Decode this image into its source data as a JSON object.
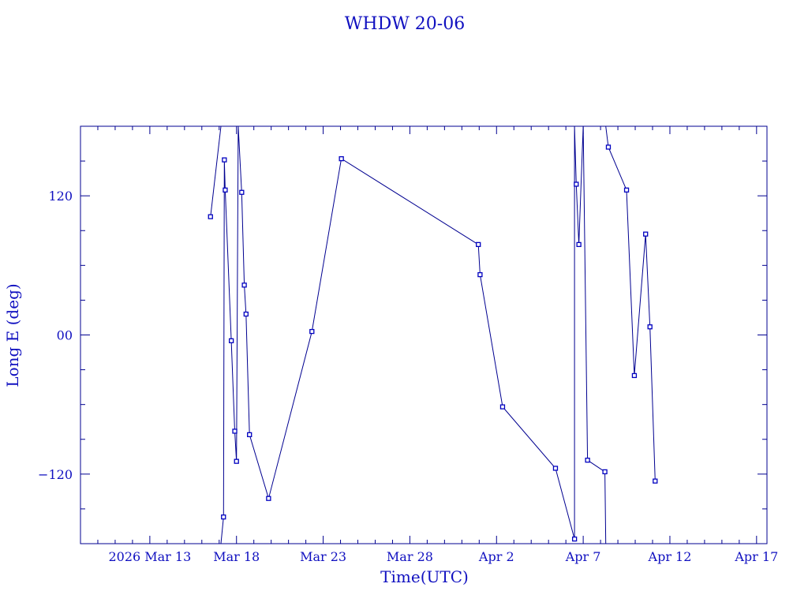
{
  "chart_data": {
    "type": "line",
    "title": "WHDW 20-06",
    "xlabel": "Time(UTC)",
    "ylabel": "Long E (deg)",
    "x_start_date": "2026-03-09",
    "xlim_days": [
      0,
      39.6
    ],
    "ylim": [
      -180,
      180
    ],
    "x_ticks": [
      {
        "day": 4,
        "label": "2026 Mar 13"
      },
      {
        "day": 9,
        "label": "Mar 18"
      },
      {
        "day": 14,
        "label": "Mar 23"
      },
      {
        "day": 19,
        "label": "Mar 28"
      },
      {
        "day": 24,
        "label": "Apr  2"
      },
      {
        "day": 29,
        "label": "Apr  7"
      },
      {
        "day": 34,
        "label": "Apr 12"
      },
      {
        "day": 39,
        "label": "Apr 17"
      }
    ],
    "y_ticks": [
      {
        "value": -120,
        "label": "−120"
      },
      {
        "value": 0,
        "label": "00"
      },
      {
        "value": 120,
        "label": "120"
      }
    ],
    "x_minor_step_days": 1,
    "y_minor_step": 30,
    "wrap_longitude": true,
    "series": [
      {
        "color": "#000090",
        "marker": "square",
        "points": [
          {
            "x": 7.5,
            "y": 102
          },
          {
            "x": 8.1,
            "y": 180
          },
          {
            "x": 8.1,
            "y": -180
          },
          {
            "x": 8.25,
            "y": -157
          },
          {
            "x": 8.3,
            "y": 151
          },
          {
            "x": 8.35,
            "y": 125
          },
          {
            "x": 8.7,
            "y": -5
          },
          {
            "x": 8.9,
            "y": -83
          },
          {
            "x": 9.0,
            "y": -109
          },
          {
            "x": 9.1,
            "y": 180
          },
          {
            "x": 9.3,
            "y": 123
          },
          {
            "x": 9.45,
            "y": 43
          },
          {
            "x": 9.55,
            "y": 18
          },
          {
            "x": 9.75,
            "y": -86
          },
          {
            "x": 10.85,
            "y": -141
          },
          {
            "x": 13.35,
            "y": 3
          },
          {
            "x": 15.05,
            "y": 152
          },
          {
            "x": 22.95,
            "y": 78
          },
          {
            "x": 23.05,
            "y": 52
          },
          {
            "x": 24.35,
            "y": -62
          },
          {
            "x": 27.4,
            "y": -115
          },
          {
            "x": 28.5,
            "y": -176
          },
          {
            "x": 28.5,
            "y": 180
          },
          {
            "x": 28.6,
            "y": 130
          },
          {
            "x": 28.75,
            "y": 78
          },
          {
            "x": 29.0,
            "y": 180
          },
          {
            "x": 29.25,
            "y": -108
          },
          {
            "x": 30.25,
            "y": -118
          },
          {
            "x": 30.3,
            "y": -180
          },
          {
            "x": 30.3,
            "y": 180
          },
          {
            "x": 30.45,
            "y": 162
          },
          {
            "x": 31.5,
            "y": 125
          },
          {
            "x": 31.95,
            "y": -35
          },
          {
            "x": 32.6,
            "y": 87
          },
          {
            "x": 32.85,
            "y": 7
          },
          {
            "x": 33.15,
            "y": -126
          }
        ]
      }
    ]
  }
}
